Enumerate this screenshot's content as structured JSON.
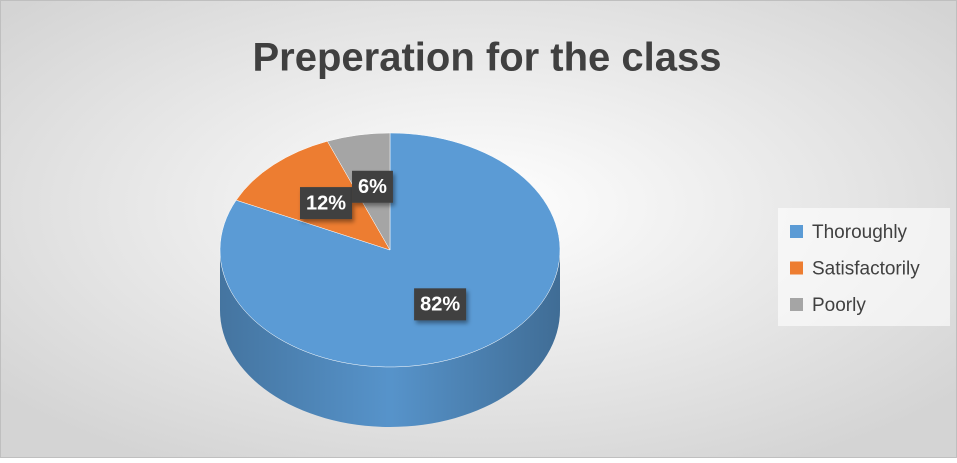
{
  "chart_data": {
    "type": "pie",
    "title": "Preperation for the class",
    "categories": [
      "Thoroughly",
      "Satisfactorily",
      "Poorly"
    ],
    "values": [
      82,
      12,
      6
    ],
    "value_labels": [
      "82%",
      "12%",
      "6%"
    ],
    "colors": [
      "#5b9bd5",
      "#ed7d31",
      "#a5a5a5"
    ],
    "legend": "right"
  }
}
